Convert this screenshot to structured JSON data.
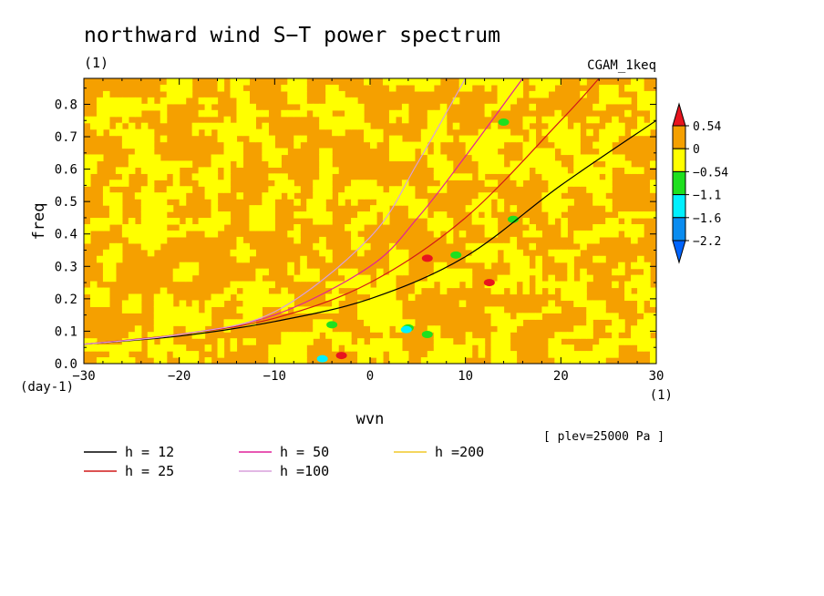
{
  "chart_data": {
    "type": "heatmap",
    "title": "northward wind S−T power spectrum",
    "subtitle_left": "(1)",
    "subtitle_right": "CGAM_1keq",
    "xlabel": "wvn",
    "xunit": "(1)",
    "ylabel": "freq",
    "yunit": "(day-1)",
    "xlim": [
      -30,
      30
    ],
    "ylim": [
      0,
      0.88
    ],
    "xticks": [
      -30,
      -20,
      -10,
      0,
      10,
      20,
      30
    ],
    "xtick_labels": [
      "−30",
      "−20",
      "−10",
      "0",
      "10",
      "20",
      "30"
    ],
    "yticks": [
      0.0,
      0.1,
      0.2,
      0.3,
      0.4,
      0.5,
      0.6,
      0.7,
      0.8
    ],
    "ytick_labels": [
      "0.0",
      "0.1",
      "0.2",
      "0.3",
      "0.4",
      "0.5",
      "0.6",
      "0.7",
      "0.8"
    ],
    "colorbar": {
      "levels": [
        "0.54",
        "0",
        "−0.54",
        "−1.1",
        "−1.6",
        "−2.2"
      ],
      "colors": [
        "#e8141e",
        "#f5a000",
        "#ffff00",
        "#1ee01e",
        "#00f0ff",
        "#0a8cf0",
        "#0064ff"
      ]
    },
    "field_colors": {
      "high": "#f5a000",
      "mid": "#ffff00",
      "rare_red": "#e8141e",
      "rare_green": "#1ee01e",
      "rare_cyan": "#00f0ff"
    },
    "dispersion_curves": [
      {
        "name": "h = 12",
        "color": "#000000",
        "x": [
          -30,
          -20,
          -10,
          0,
          10,
          20,
          30
        ],
        "y": [
          0.06,
          0.085,
          0.13,
          0.2,
          0.33,
          0.55,
          0.75
        ]
      },
      {
        "name": "h = 25",
        "color": "#d01818",
        "x": [
          -30,
          -20,
          -10,
          0,
          10,
          20,
          24
        ],
        "y": [
          0.06,
          0.09,
          0.14,
          0.25,
          0.45,
          0.75,
          0.88
        ]
      },
      {
        "name": "h = 50",
        "color": "#e0209a",
        "x": [
          -30,
          -20,
          -10,
          0,
          5,
          10,
          16
        ],
        "y": [
          0.06,
          0.09,
          0.15,
          0.3,
          0.45,
          0.64,
          0.88
        ]
      },
      {
        "name": "h =100",
        "color": "#d8a0dc",
        "x": [
          -30,
          -20,
          -10,
          0,
          5,
          10
        ],
        "y": [
          0.06,
          0.09,
          0.16,
          0.39,
          0.62,
          0.88
        ]
      },
      {
        "name": "h =200",
        "color": "#f0c828",
        "x": [],
        "y": []
      }
    ],
    "legend": {
      "position": "bottom",
      "columns": 3
    },
    "annotation": "[ plev=25000 Pa ]",
    "grid": false
  }
}
